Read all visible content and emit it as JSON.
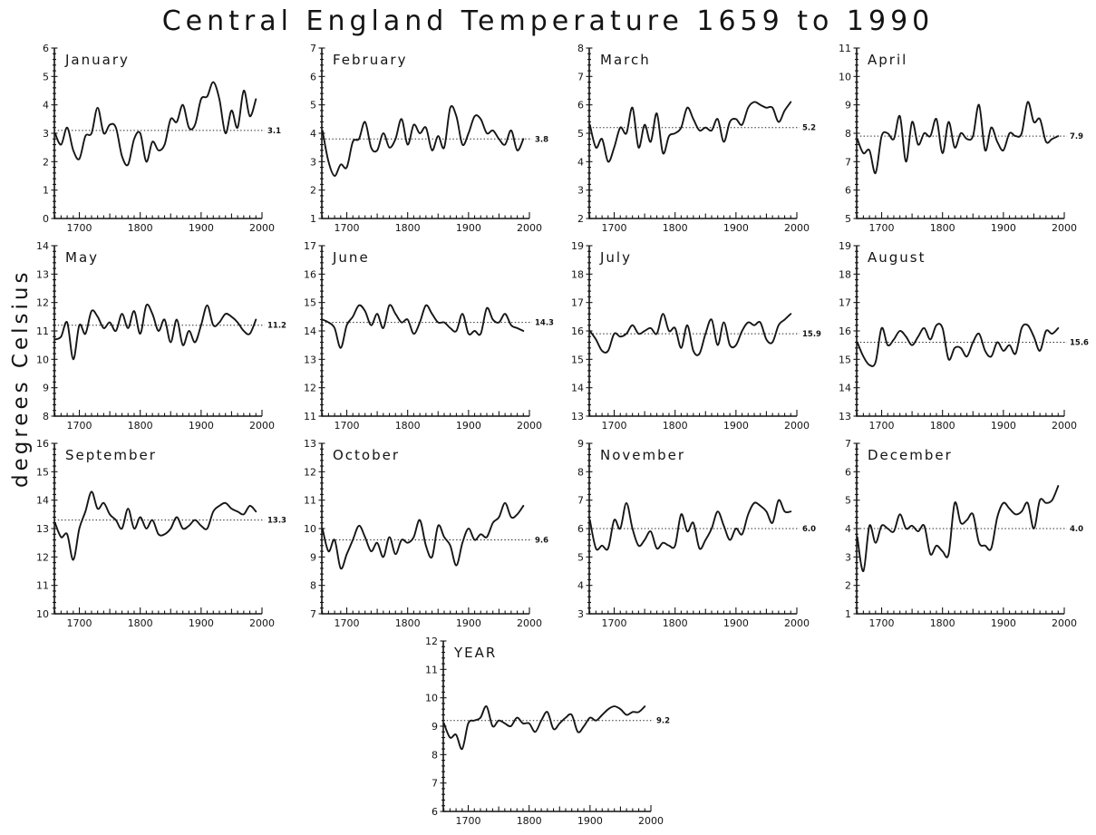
{
  "header": {
    "title": "Central England Temperature 1659 to 1990"
  },
  "axis": {
    "ylabel": "degrees Celsius",
    "xticks": [
      1700,
      1800,
      1900,
      2000
    ],
    "x_range": [
      1659,
      2000
    ],
    "years": [
      1660,
      1670,
      1680,
      1690,
      1700,
      1710,
      1720,
      1730,
      1740,
      1750,
      1760,
      1770,
      1780,
      1790,
      1800,
      1810,
      1820,
      1830,
      1840,
      1850,
      1860,
      1870,
      1880,
      1890,
      1900,
      1910,
      1920,
      1930,
      1940,
      1950,
      1960,
      1970,
      1980,
      1990
    ]
  },
  "chart_data": [
    {
      "type": "line",
      "name": "January",
      "ylim": [
        0,
        6
      ],
      "mean": 3.1,
      "mean_label": "3.1",
      "values": [
        3.0,
        2.6,
        3.2,
        2.4,
        2.1,
        2.9,
        3.0,
        3.9,
        3.0,
        3.3,
        3.2,
        2.2,
        1.9,
        2.8,
        3.0,
        2.0,
        2.7,
        2.4,
        2.6,
        3.5,
        3.4,
        4.0,
        3.2,
        3.3,
        4.2,
        4.3,
        4.8,
        4.2,
        3.0,
        3.8,
        3.2,
        4.5,
        3.6,
        4.2
      ]
    },
    {
      "type": "line",
      "name": "February",
      "ylim": [
        1,
        7
      ],
      "mean": 3.8,
      "mean_label": "3.8",
      "values": [
        4.1,
        3.0,
        2.5,
        2.9,
        2.8,
        3.7,
        3.8,
        4.4,
        3.5,
        3.4,
        4.0,
        3.5,
        3.8,
        4.5,
        3.6,
        4.3,
        4.0,
        4.2,
        3.4,
        3.9,
        3.5,
        4.9,
        4.6,
        3.6,
        4.0,
        4.6,
        4.5,
        4.0,
        4.1,
        3.8,
        3.6,
        4.1,
        3.4,
        3.8
      ]
    },
    {
      "type": "line",
      "name": "March",
      "ylim": [
        2,
        8
      ],
      "mean": 5.2,
      "mean_label": "5.2",
      "values": [
        5.3,
        4.5,
        4.8,
        4.0,
        4.5,
        5.2,
        5.0,
        5.9,
        4.5,
        5.3,
        4.7,
        5.7,
        4.3,
        4.9,
        5.0,
        5.2,
        5.9,
        5.5,
        5.1,
        5.2,
        5.1,
        5.5,
        4.7,
        5.4,
        5.5,
        5.3,
        5.9,
        6.1,
        6.0,
        5.9,
        5.9,
        5.4,
        5.8,
        6.1
      ]
    },
    {
      "type": "line",
      "name": "April",
      "ylim": [
        5,
        11
      ],
      "mean": 7.9,
      "mean_label": "7.9",
      "values": [
        7.8,
        7.3,
        7.4,
        6.6,
        7.9,
        8.0,
        7.8,
        8.6,
        7.0,
        8.4,
        7.6,
        8.0,
        7.9,
        8.5,
        7.3,
        8.4,
        7.5,
        8.0,
        7.8,
        7.9,
        9.0,
        7.4,
        8.2,
        7.7,
        7.4,
        8.0,
        7.9,
        8.0,
        9.1,
        8.4,
        8.5,
        7.7,
        7.8,
        7.9
      ]
    },
    {
      "type": "line",
      "name": "May",
      "ylim": [
        8,
        14
      ],
      "mean": 11.2,
      "mean_label": "11.2",
      "values": [
        10.7,
        10.8,
        11.3,
        10.0,
        11.2,
        10.9,
        11.7,
        11.5,
        11.1,
        11.3,
        11.0,
        11.6,
        11.1,
        11.7,
        10.9,
        11.9,
        11.6,
        11.0,
        11.4,
        10.6,
        11.4,
        10.5,
        11.0,
        10.6,
        11.2,
        11.9,
        11.2,
        11.3,
        11.6,
        11.5,
        11.3,
        11.0,
        10.9,
        11.4
      ]
    },
    {
      "type": "line",
      "name": "June",
      "ylim": [
        11,
        17
      ],
      "mean": 14.3,
      "mean_label": "14.3",
      "values": [
        14.4,
        14.3,
        14.1,
        13.4,
        14.2,
        14.5,
        14.9,
        14.7,
        14.2,
        14.6,
        14.1,
        14.9,
        14.6,
        14.3,
        14.4,
        13.9,
        14.3,
        14.9,
        14.6,
        14.3,
        14.3,
        14.1,
        14.0,
        14.6,
        13.9,
        14.0,
        13.9,
        14.8,
        14.4,
        14.3,
        14.6,
        14.2,
        14.1,
        14.0
      ]
    },
    {
      "type": "line",
      "name": "July",
      "ylim": [
        13,
        19
      ],
      "mean": 15.9,
      "mean_label": "15.9",
      "values": [
        16.0,
        15.7,
        15.3,
        15.3,
        15.9,
        15.8,
        15.9,
        16.2,
        15.9,
        16.0,
        16.1,
        15.9,
        16.6,
        16.0,
        16.1,
        15.4,
        16.2,
        15.3,
        15.2,
        15.9,
        16.4,
        15.5,
        16.3,
        15.5,
        15.5,
        16.0,
        16.3,
        16.2,
        16.3,
        15.7,
        15.6,
        16.2,
        16.4,
        16.6
      ]
    },
    {
      "type": "line",
      "name": "August",
      "ylim": [
        13,
        19
      ],
      "mean": 15.6,
      "mean_label": "15.6",
      "values": [
        15.6,
        15.1,
        14.8,
        14.9,
        16.1,
        15.5,
        15.7,
        16.0,
        15.8,
        15.5,
        15.8,
        16.1,
        15.7,
        16.2,
        16.1,
        15.0,
        15.4,
        15.4,
        15.1,
        15.6,
        15.9,
        15.3,
        15.1,
        15.6,
        15.3,
        15.5,
        15.2,
        16.1,
        16.2,
        15.8,
        15.3,
        16.0,
        15.9,
        16.1
      ]
    },
    {
      "type": "line",
      "name": "September",
      "ylim": [
        10,
        16
      ],
      "mean": 13.3,
      "mean_label": "13.3",
      "values": [
        13.2,
        12.7,
        12.8,
        11.9,
        13.0,
        13.6,
        14.3,
        13.7,
        13.9,
        13.5,
        13.3,
        13.0,
        13.7,
        13.0,
        13.4,
        13.0,
        13.3,
        12.8,
        12.8,
        13.0,
        13.4,
        13.0,
        13.1,
        13.3,
        13.1,
        13.0,
        13.6,
        13.8,
        13.9,
        13.7,
        13.6,
        13.5,
        13.8,
        13.6
      ]
    },
    {
      "type": "line",
      "name": "October",
      "ylim": [
        7,
        13
      ],
      "mean": 9.6,
      "mean_label": "9.6",
      "values": [
        10.0,
        9.2,
        9.6,
        8.6,
        9.1,
        9.6,
        10.1,
        9.7,
        9.2,
        9.5,
        9.0,
        9.7,
        9.1,
        9.6,
        9.5,
        9.7,
        10.3,
        9.4,
        9.0,
        10.1,
        9.7,
        9.4,
        8.7,
        9.5,
        10.0,
        9.6,
        9.8,
        9.7,
        10.2,
        10.4,
        10.9,
        10.4,
        10.5,
        10.8
      ]
    },
    {
      "type": "line",
      "name": "November",
      "ylim": [
        3,
        9
      ],
      "mean": 6.0,
      "mean_label": "6.0",
      "values": [
        6.3,
        5.3,
        5.4,
        5.3,
        6.3,
        6.0,
        6.9,
        6.0,
        5.4,
        5.6,
        5.9,
        5.3,
        5.5,
        5.4,
        5.4,
        6.5,
        5.9,
        6.2,
        5.3,
        5.6,
        6.0,
        6.6,
        6.1,
        5.6,
        6.0,
        5.8,
        6.5,
        6.9,
        6.8,
        6.6,
        6.2,
        7.0,
        6.6,
        6.6
      ]
    },
    {
      "type": "line",
      "name": "December",
      "ylim": [
        1,
        7
      ],
      "mean": 4.0,
      "mean_label": "4.0",
      "values": [
        3.7,
        2.5,
        4.1,
        3.5,
        4.1,
        4.0,
        3.9,
        4.5,
        4.0,
        4.1,
        3.9,
        4.1,
        3.1,
        3.4,
        3.2,
        3.1,
        4.9,
        4.2,
        4.3,
        4.5,
        3.5,
        3.4,
        3.3,
        4.4,
        4.9,
        4.7,
        4.5,
        4.6,
        4.9,
        4.0,
        5.0,
        4.9,
        5.0,
        5.5
      ]
    },
    {
      "type": "line",
      "name": "YEAR",
      "ylim": [
        6,
        12
      ],
      "mean": 9.2,
      "mean_label": "9.2",
      "values": [
        9.1,
        8.6,
        8.7,
        8.2,
        9.1,
        9.2,
        9.3,
        9.7,
        9.0,
        9.2,
        9.1,
        9.0,
        9.3,
        9.1,
        9.1,
        8.8,
        9.2,
        9.5,
        8.9,
        9.1,
        9.3,
        9.4,
        8.8,
        9.0,
        9.3,
        9.2,
        9.4,
        9.6,
        9.7,
        9.6,
        9.4,
        9.5,
        9.5,
        9.7
      ]
    }
  ]
}
